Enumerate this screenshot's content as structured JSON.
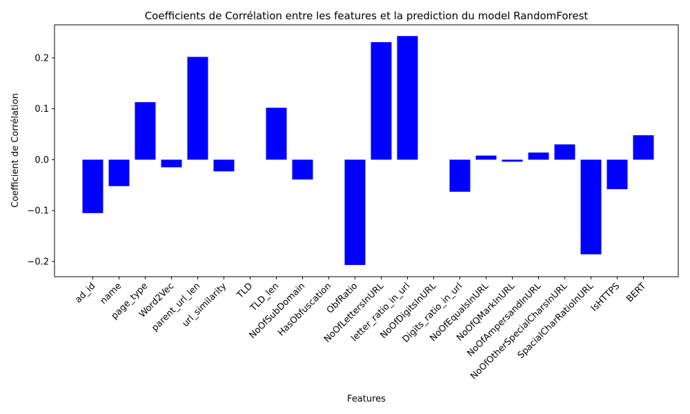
{
  "chart_data": {
    "type": "bar",
    "title": "Coefficients de Corrélation entre les features et la prediction du model RandomForest",
    "xlabel": "Features",
    "ylabel": "Coefficient de Corrélation",
    "categories": [
      "ad_id",
      "name",
      "page_type",
      "Word2Vec",
      "parent_url_len",
      "url_similarity",
      "TLD",
      "TLD_len",
      "NoOfSubDomain",
      "HasObfuscation",
      "ObfRatio",
      "NoOfLettersInURL",
      "letter_ratio_in_url",
      "NoOfDigitsInURL",
      "Digits_ratio_in_url",
      "NoOfEqualsInURL",
      "NoOfQMarkInURL",
      "NoOfAmpersandInURL",
      "NoOfOtherSpecialCharsInURL",
      "SpacialCharRatioInURL",
      "IsHTTPS",
      "BERT"
    ],
    "values": [
      -0.105,
      -0.052,
      0.113,
      -0.015,
      0.202,
      -0.023,
      0.0,
      0.102,
      -0.039,
      0.0,
      -0.207,
      0.231,
      0.243,
      0.0,
      -0.063,
      0.008,
      -0.004,
      0.014,
      0.03,
      -0.186,
      -0.058,
      0.048
    ],
    "ylim": [
      -0.23,
      0.265
    ],
    "yticks": [
      -0.2,
      -0.1,
      0.0,
      0.1,
      0.2
    ],
    "ytick_labels": [
      "−0.2",
      "−0.1",
      "0.0",
      "0.1",
      "0.2"
    ],
    "bar_color": "#0000ff",
    "grid": false,
    "legend": "none"
  }
}
